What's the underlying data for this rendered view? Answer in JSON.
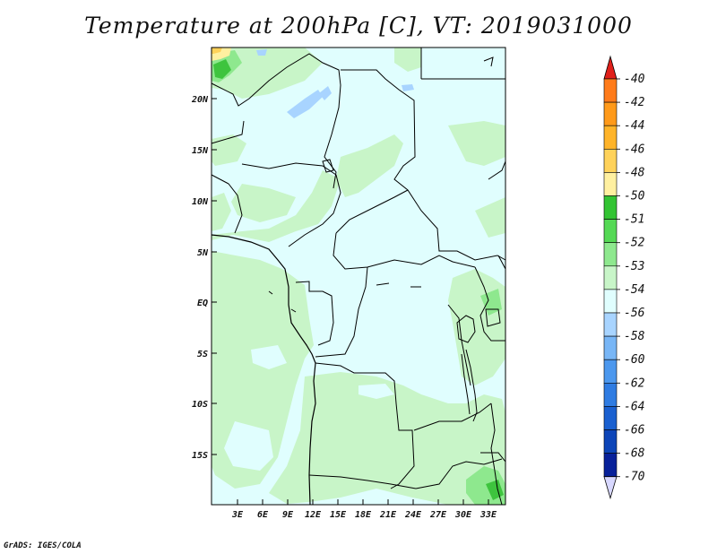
{
  "title": "Temperature at 200hPa [C], VT: 2019031000",
  "credit": "GrADS: IGES/COLA",
  "map": {
    "lat_ticks": [
      "20N",
      "15N",
      "10N",
      "5N",
      "EQ",
      "5S",
      "10S",
      "15S"
    ],
    "lon_ticks": [
      "3E",
      "6E",
      "9E",
      "12E",
      "15E",
      "18E",
      "21E",
      "24E",
      "27E",
      "30E",
      "33E"
    ]
  },
  "colorbar": {
    "levels": [
      "-40",
      "-42",
      "-44",
      "-46",
      "-48",
      "-50",
      "-51",
      "-52",
      "-53",
      "-54",
      "-56",
      "-58",
      "-60",
      "-62",
      "-64",
      "-66",
      "-68",
      "-70"
    ],
    "colors": [
      "#ff5a1e",
      "#ff7b1a",
      "#ff9a1a",
      "#ffb429",
      "#ffd25a",
      "#fff0a0",
      "#33c433",
      "#55d955",
      "#8ee88e",
      "#c8f5c8",
      "#e0fefe",
      "#a8d4ff",
      "#78b6f6",
      "#4c98ee",
      "#2f7ce2",
      "#1a60d0",
      "#0d45b8",
      "#08219a",
      "#040a6e"
    ],
    "cap_top_color": "#e0201a",
    "cap_bottom_color": "#d8d8ff"
  },
  "colors": {
    "ocean_low": "#e0fefe",
    "land_mid": "#c8f5c8",
    "green_mid": "#8ee88e",
    "green_dark": "#3ec43e",
    "blue_light": "#a8d4ff",
    "yellow": "#fff0a0",
    "orange": "#ffd25a"
  }
}
